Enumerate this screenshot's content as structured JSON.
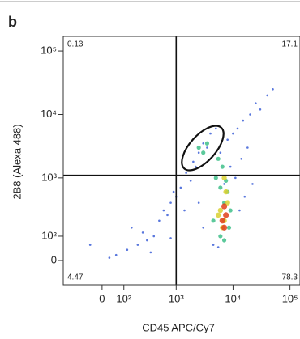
{
  "chart_data": {
    "type": "scatter",
    "panel_label": "b",
    "x_label": "CD45 APC/Cy7",
    "y_label": "2B8 (Alexa 488)",
    "xlim": [
      -230,
      150000
    ],
    "ylim": [
      -100,
      170000
    ],
    "xticks": [
      0,
      {
        "value": 100,
        "label": "10²"
      },
      {
        "value": 1000,
        "label": "10³"
      },
      {
        "value": 10000,
        "label": "10⁴"
      },
      {
        "value": 100000,
        "label": "10⁵"
      }
    ],
    "yticks": [
      0,
      {
        "value": 100,
        "label": "10²"
      },
      {
        "value": 1000,
        "label": "10³"
      },
      {
        "value": 10000,
        "label": "10⁴"
      },
      {
        "value": 100000,
        "label": "10⁵"
      }
    ],
    "scale": "biexponential",
    "quadrant_x": 1000,
    "quadrant_y": 1100,
    "quadrant_percents": {
      "top_left": 0.13,
      "top_right": 17.1,
      "bottom_left": 4.47,
      "bottom_right": 78.3
    },
    "series": [
      {
        "color": "#2f55d4",
        "x": [
          120,
          200,
          300,
          150,
          400,
          500,
          250,
          700,
          800,
          600,
          1000,
          1200,
          900,
          1500,
          2000,
          1800,
          2500,
          3000,
          2200,
          4000,
          5000,
          3500,
          6000,
          8000,
          10000,
          12000,
          15000,
          20000,
          25000,
          30000,
          40000,
          50000,
          18000,
          9000,
          14000,
          7000,
          11000,
          2500,
          3000,
          4500,
          13000,
          16000,
          22000,
          5500,
          1400,
          800,
          350,
          60,
          30,
          -50
        ],
        "y": [
          40,
          60,
          80,
          150,
          100,
          200,
          120,
          250,
          400,
          300,
          500,
          700,
          600,
          1200,
          1800,
          900,
          2500,
          3500,
          1500,
          5000,
          6000,
          3000,
          2500,
          4000,
          5000,
          6000,
          8000,
          10000,
          15000,
          12000,
          20000,
          25000,
          3000,
          1500,
          2000,
          800,
          1000,
          400,
          150,
          60,
          300,
          500,
          800,
          50,
          300,
          90,
          30,
          20,
          10,
          60
        ]
      },
      {
        "color": "#3fbf8a",
        "x": [
          5000,
          6000,
          7000,
          8000,
          9000,
          4500,
          6500,
          7500,
          5500,
          8500,
          3000,
          2500,
          3500,
          6000,
          7000
        ],
        "y": [
          1000,
          700,
          400,
          600,
          300,
          200,
          1500,
          900,
          2000,
          150,
          2500,
          3000,
          3500,
          100,
          80
        ]
      },
      {
        "color": "#d8d030",
        "x": [
          6000,
          7000,
          8000,
          6500,
          7500,
          5500,
          7000
        ],
        "y": [
          300,
          200,
          400,
          150,
          600,
          250,
          1000
        ]
      },
      {
        "color": "#e0401a",
        "x": [
          6500,
          7000,
          7500,
          7000
        ],
        "y": [
          200,
          150,
          250,
          350
        ]
      }
    ]
  }
}
